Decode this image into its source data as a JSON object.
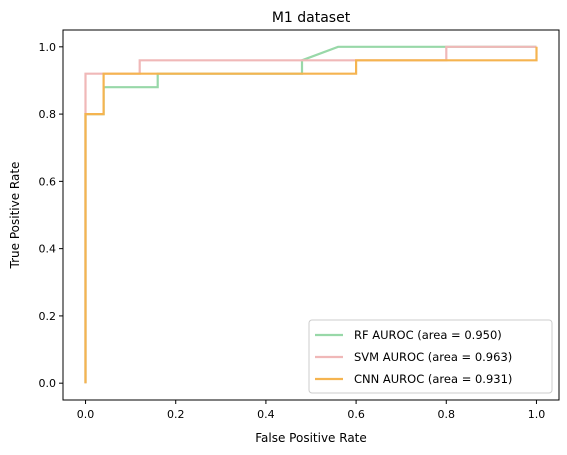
{
  "chart_data": {
    "type": "line",
    "title": "M1 dataset",
    "xlabel": "False Positive Rate",
    "ylabel": "True Positive Rate",
    "xlim": [
      -0.05,
      1.05
    ],
    "ylim": [
      -0.05,
      1.05
    ],
    "x_ticks": [
      "0.0",
      "0.2",
      "0.4",
      "0.6",
      "0.8",
      "1.0"
    ],
    "y_ticks": [
      "0.0",
      "0.2",
      "0.4",
      "0.6",
      "0.8",
      "1.0"
    ],
    "grid": false,
    "legend_position": "lower-right",
    "series": [
      {
        "name": "RF AUROC (area = 0.950)",
        "color": "#98d8a8",
        "x": [
          0,
          0,
          0.04,
          0.04,
          0.16,
          0.16,
          0.48,
          0.48,
          0.56,
          1.0
        ],
        "y": [
          0,
          0.8,
          0.8,
          0.88,
          0.88,
          0.92,
          0.92,
          0.96,
          1.0,
          1.0
        ]
      },
      {
        "name": "SVM AUROC (area = 0.963)",
        "color": "#f0b8b8",
        "x": [
          0,
          0,
          0.12,
          0.12,
          0.8,
          0.8,
          1.0
        ],
        "y": [
          0,
          0.92,
          0.92,
          0.96,
          0.96,
          1.0,
          1.0
        ]
      },
      {
        "name": "CNN AUROC (area = 0.931)",
        "color": "#f5b450",
        "x": [
          0,
          0,
          0.04,
          0.04,
          0.6,
          0.6,
          1.0,
          1.0
        ],
        "y": [
          0,
          0.8,
          0.8,
          0.92,
          0.92,
          0.96,
          0.96,
          1.0
        ]
      }
    ]
  }
}
